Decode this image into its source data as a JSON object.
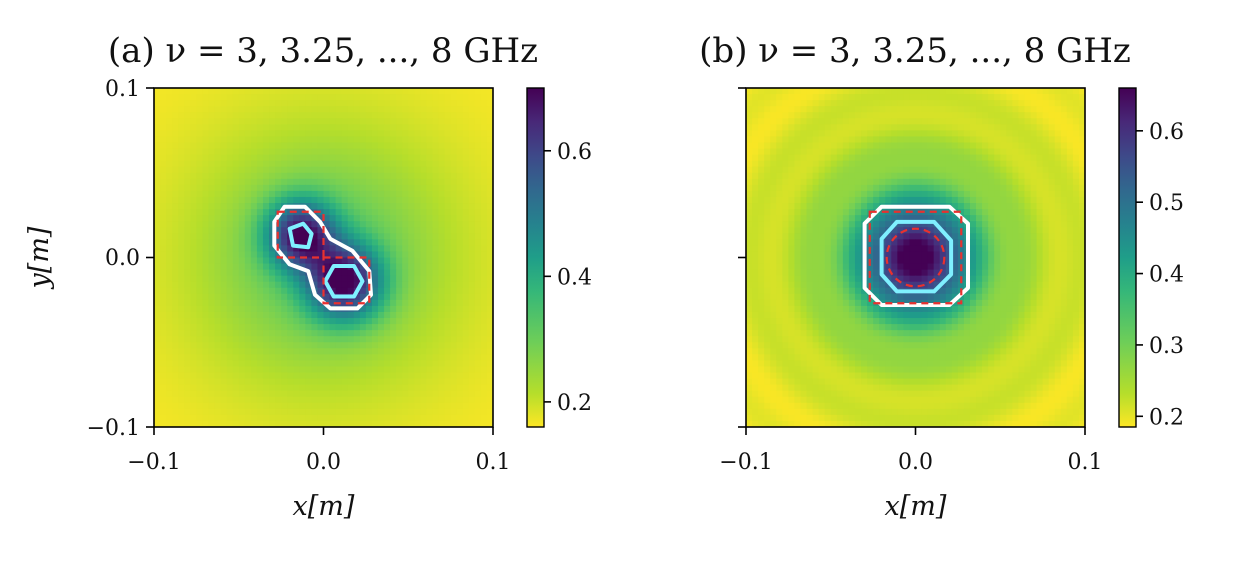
{
  "chart_data": [
    {
      "type": "heatmap",
      "title": "(a) ν = 3, 3.25, ..., 8 GHz",
      "xlabel": "x[m]",
      "ylabel": "y[m]",
      "xlim": [
        -0.1,
        0.1
      ],
      "ylim": [
        -0.1,
        0.1
      ],
      "x_ticks": [
        "−0.1",
        "0.0",
        "0.1"
      ],
      "y_ticks": [
        "−0.1",
        "0.0",
        "0.1"
      ],
      "colorbar": {
        "min": 0.16,
        "max": 0.7,
        "ticks": [
          "0.2",
          "0.4",
          "0.6"
        ],
        "tick_values": [
          0.2,
          0.4,
          0.6
        ],
        "colormap": "viridis_r"
      },
      "background_level": 0.3,
      "blobs": [
        {
          "x": -0.013,
          "y": 0.013,
          "sigma": 0.0135,
          "amp": 0.42
        },
        {
          "x": 0.012,
          "y": -0.014,
          "sigma": 0.0145,
          "amp": 0.45
        }
      ],
      "contours": [
        {
          "color": "#ffffff",
          "shape": "peanut",
          "points": [
            [
              -0.029,
              0.021
            ],
            [
              -0.023,
              0.03
            ],
            [
              -0.011,
              0.03
            ],
            [
              -0.002,
              0.021
            ],
            [
              0.004,
              0.011
            ],
            [
              0.017,
              0.004
            ],
            [
              0.027,
              -0.008
            ],
            [
              0.028,
              -0.022
            ],
            [
              0.02,
              -0.03
            ],
            [
              0.004,
              -0.03
            ],
            [
              -0.005,
              -0.022
            ],
            [
              -0.009,
              -0.008
            ],
            [
              -0.02,
              -0.004
            ],
            [
              -0.029,
              0.007
            ]
          ]
        },
        {
          "color": "#7ff0ff",
          "shape": "ring",
          "points": [
            [
              -0.02,
              0.017
            ],
            [
              -0.012,
              0.02
            ],
            [
              -0.007,
              0.014
            ],
            [
              -0.009,
              0.006
            ],
            [
              -0.018,
              0.007
            ]
          ]
        },
        {
          "color": "#7ff0ff",
          "shape": "ring",
          "points": [
            [
              0.006,
              -0.005
            ],
            [
              0.018,
              -0.005
            ],
            [
              0.023,
              -0.014
            ],
            [
              0.018,
              -0.023
            ],
            [
              0.006,
              -0.023
            ],
            [
              0.001,
              -0.014
            ]
          ]
        }
      ],
      "true_objects": [
        {
          "type": "square",
          "x": -0.0135,
          "y": 0.0135,
          "half": 0.0135
        },
        {
          "type": "square",
          "x": 0.0135,
          "y": -0.0135,
          "half": 0.0135
        }
      ]
    },
    {
      "type": "heatmap",
      "title": "(b) ν = 3, 3.25, ..., 8 GHz",
      "xlabel": "x[m]",
      "ylabel": "",
      "xlim": [
        -0.1,
        0.1
      ],
      "ylim": [
        -0.1,
        0.1
      ],
      "x_ticks": [
        "−0.1",
        "0.0",
        "0.1"
      ],
      "y_ticks": [
        "",
        "",
        ""
      ],
      "colorbar": {
        "min": 0.185,
        "max": 0.66,
        "ticks": [
          "0.2",
          "0.3",
          "0.4",
          "0.5",
          "0.6"
        ],
        "tick_values": [
          0.2,
          0.3,
          0.4,
          0.5,
          0.6
        ],
        "colormap": "viridis_r"
      },
      "background_level": 0.3,
      "blobs": [
        {
          "x": 0.0,
          "y": 0.0,
          "sigma": 0.021,
          "amp": 0.4
        }
      ],
      "contours": [
        {
          "color": "#ffffff",
          "shape": "rounded-square",
          "points": [
            [
              -0.03,
              0.02
            ],
            [
              -0.02,
              0.03
            ],
            [
              0.02,
              0.03
            ],
            [
              0.031,
              0.02
            ],
            [
              0.031,
              -0.018
            ],
            [
              0.02,
              -0.028
            ],
            [
              -0.02,
              -0.028
            ],
            [
              -0.03,
              -0.018
            ]
          ]
        },
        {
          "color": "#7ff0ff",
          "shape": "ring",
          "points": [
            [
              -0.02,
              0.011
            ],
            [
              -0.011,
              0.021
            ],
            [
              0.011,
              0.021
            ],
            [
              0.021,
              0.01
            ],
            [
              0.021,
              -0.01
            ],
            [
              0.011,
              -0.02
            ],
            [
              -0.011,
              -0.02
            ],
            [
              -0.02,
              -0.01
            ]
          ]
        }
      ],
      "true_objects": [
        {
          "type": "square",
          "x": 0.0,
          "y": 0.0,
          "half": 0.027
        },
        {
          "type": "circle",
          "x": 0.0,
          "y": 0.0,
          "r": 0.017
        }
      ]
    }
  ]
}
